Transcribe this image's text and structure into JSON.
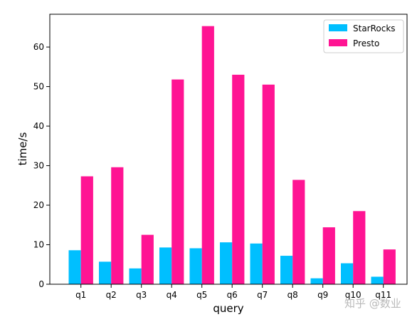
{
  "chart_data": {
    "type": "bar",
    "categories": [
      "q1",
      "q2",
      "q3",
      "q4",
      "q5",
      "q6",
      "q7",
      "q8",
      "q9",
      "q10",
      "q11"
    ],
    "series": [
      {
        "name": "StarRocks",
        "color": "#00bfff",
        "values": [
          8.6,
          5.7,
          4.0,
          9.3,
          9.1,
          10.6,
          10.3,
          7.2,
          1.5,
          5.3,
          1.9
        ]
      },
      {
        "name": "Presto",
        "color": "#ff1493",
        "values": [
          27.3,
          29.6,
          12.5,
          51.8,
          65.3,
          53.0,
          50.5,
          26.4,
          14.4,
          18.5,
          8.8
        ]
      }
    ],
    "title": "",
    "xlabel": "query",
    "ylabel": "time/s",
    "ylim": [
      0,
      68.3
    ],
    "yticks": [
      0,
      10,
      20,
      30,
      40,
      50,
      60
    ],
    "grid": false,
    "legend_position": "top-right"
  },
  "watermark": "知乎 @数业"
}
